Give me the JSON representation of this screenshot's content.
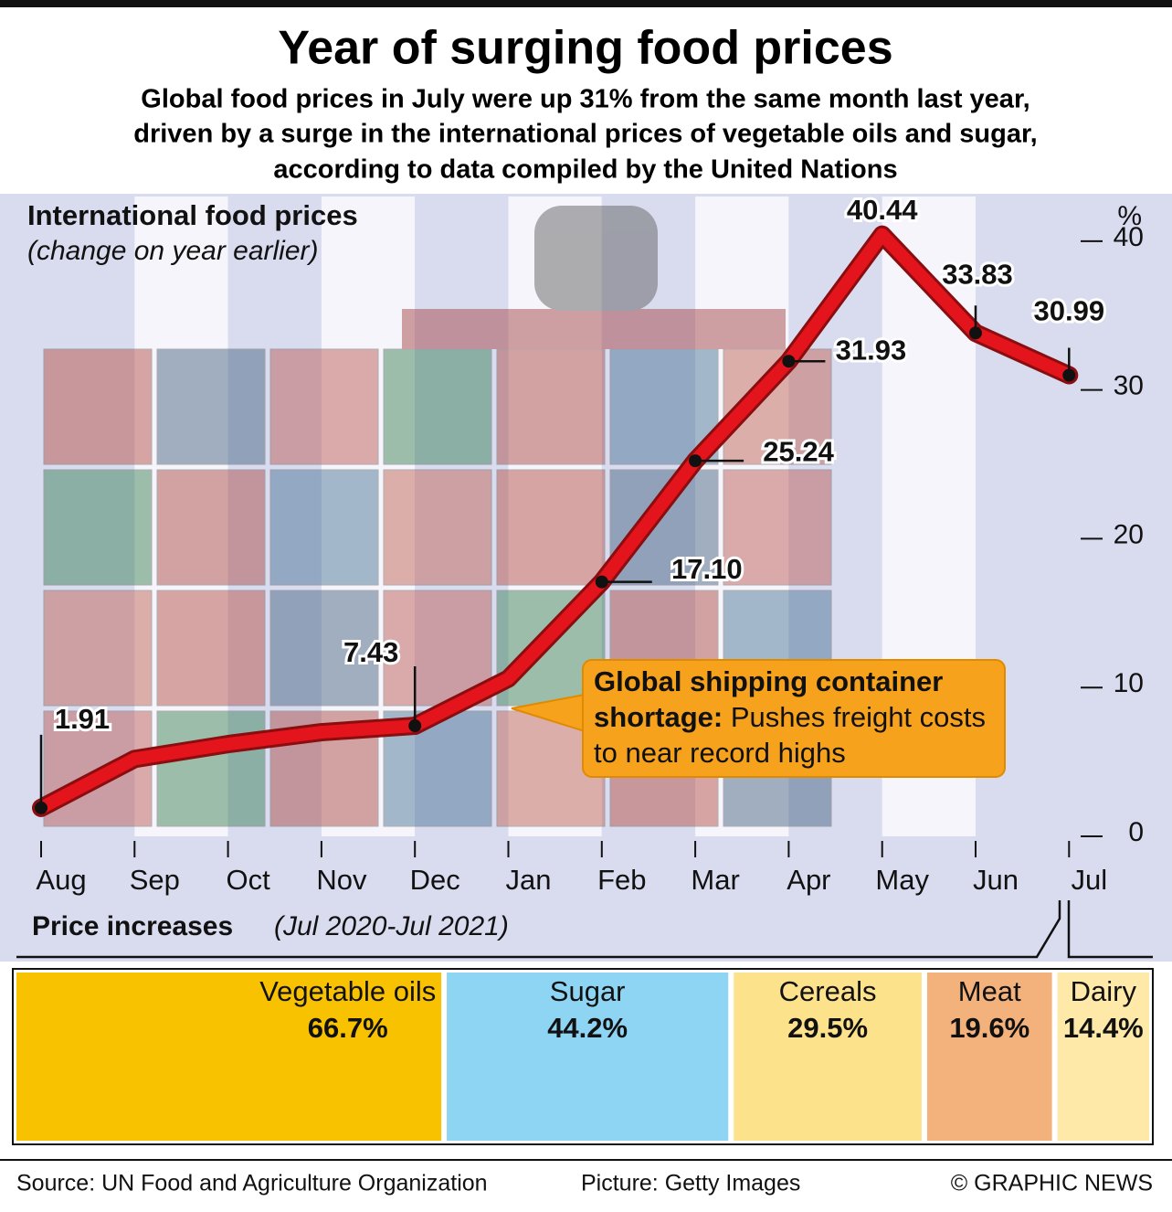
{
  "header": {
    "title": "Year of surging food prices",
    "subtitle": [
      "Global food prices in July were up 31% from the same month last year,",
      "driven by a surge in the international prices of vegetable oils and sugar,",
      "according to data compiled by the United Nations"
    ]
  },
  "chart_data": [
    {
      "type": "line",
      "title": "International food prices",
      "subtitle": "(change on year earlier)",
      "y_unit": "%",
      "categories": [
        "Aug",
        "Sep",
        "Oct",
        "Nov",
        "Dec",
        "Jan",
        "Feb",
        "Mar",
        "Apr",
        "May",
        "Jun",
        "Jul"
      ],
      "series": [
        {
          "name": "International food prices",
          "color": "#e3141b",
          "values": [
            1.91,
            5.2,
            6.2,
            7.0,
            7.43,
            10.6,
            17.1,
            25.24,
            31.93,
            40.44,
            33.83,
            30.99
          ],
          "value_labels": [
            "1.91",
            null,
            null,
            null,
            "7.43",
            null,
            "17.10",
            "25.24",
            "31.93",
            "40.44",
            "33.83",
            "30.99"
          ]
        }
      ],
      "ylim": [
        0,
        43
      ],
      "yticks": [
        0,
        10,
        20,
        30,
        40
      ],
      "annotation": {
        "bold": "Global shipping container shortage:",
        "text": "Pushes freight costs to near record highs"
      }
    },
    {
      "type": "bar",
      "title": "Price increases",
      "subtitle": "(Jul 2020-Jul 2021)",
      "categories": [
        "Vegetable oils",
        "Sugar",
        "Cereals",
        "Meat",
        "Dairy"
      ],
      "values": [
        66.7,
        44.2,
        29.5,
        19.6,
        14.4
      ],
      "value_labels": [
        "66.7%",
        "44.2%",
        "29.5%",
        "19.6%",
        "14.4%"
      ],
      "colors": [
        "#f8c200",
        "#8ed4f3",
        "#fde28c",
        "#f3b27c",
        "#fee9a8"
      ]
    }
  ],
  "footer": {
    "source": "Source: UN Food and Agriculture Organization",
    "picture": "Picture: Getty Images",
    "credit": "© GRAPHIC NEWS"
  }
}
